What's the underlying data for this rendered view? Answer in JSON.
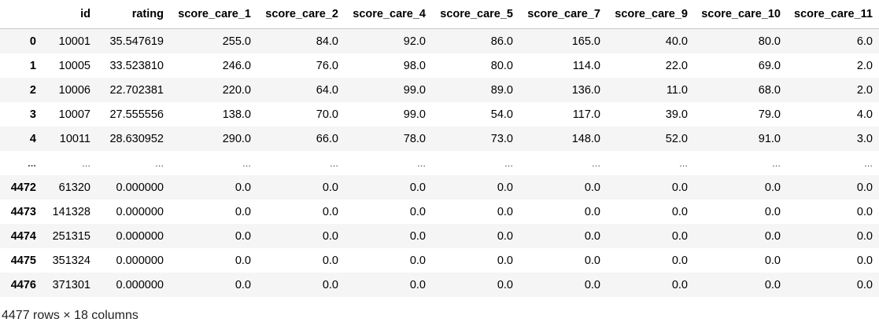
{
  "dataframe": {
    "columns": [
      "",
      "id",
      "rating",
      "score_care_1",
      "score_care_2",
      "score_care_4",
      "score_care_5",
      "score_care_7",
      "score_care_9",
      "score_care_10",
      "score_care_11"
    ],
    "rows": [
      [
        "0",
        "10001",
        "35.547619",
        "255.0",
        "84.0",
        "92.0",
        "86.0",
        "165.0",
        "40.0",
        "80.0",
        "6.0"
      ],
      [
        "1",
        "10005",
        "33.523810",
        "246.0",
        "76.0",
        "98.0",
        "80.0",
        "114.0",
        "22.0",
        "69.0",
        "2.0"
      ],
      [
        "2",
        "10006",
        "22.702381",
        "220.0",
        "64.0",
        "99.0",
        "89.0",
        "136.0",
        "11.0",
        "68.0",
        "2.0"
      ],
      [
        "3",
        "10007",
        "27.555556",
        "138.0",
        "70.0",
        "99.0",
        "54.0",
        "117.0",
        "39.0",
        "79.0",
        "4.0"
      ],
      [
        "4",
        "10011",
        "28.630952",
        "290.0",
        "66.0",
        "78.0",
        "73.0",
        "148.0",
        "52.0",
        "91.0",
        "3.0"
      ],
      [
        "...",
        "...",
        "...",
        "...",
        "...",
        "...",
        "...",
        "...",
        "...",
        "...",
        "..."
      ],
      [
        "4472",
        "61320",
        "0.000000",
        "0.0",
        "0.0",
        "0.0",
        "0.0",
        "0.0",
        "0.0",
        "0.0",
        "0.0"
      ],
      [
        "4473",
        "141328",
        "0.000000",
        "0.0",
        "0.0",
        "0.0",
        "0.0",
        "0.0",
        "0.0",
        "0.0",
        "0.0"
      ],
      [
        "4474",
        "251315",
        "0.000000",
        "0.0",
        "0.0",
        "0.0",
        "0.0",
        "0.0",
        "0.0",
        "0.0",
        "0.0"
      ],
      [
        "4475",
        "351324",
        "0.000000",
        "0.0",
        "0.0",
        "0.0",
        "0.0",
        "0.0",
        "0.0",
        "0.0",
        "0.0"
      ],
      [
        "4476",
        "371301",
        "0.000000",
        "0.0",
        "0.0",
        "0.0",
        "0.0",
        "0.0",
        "0.0",
        "0.0",
        "0.0"
      ]
    ],
    "shape_text": "4477 rows × 18 columns"
  },
  "colors": {
    "stripe": "#f5f5f5",
    "header_border": "#c8c8c8",
    "text": "#000000"
  }
}
